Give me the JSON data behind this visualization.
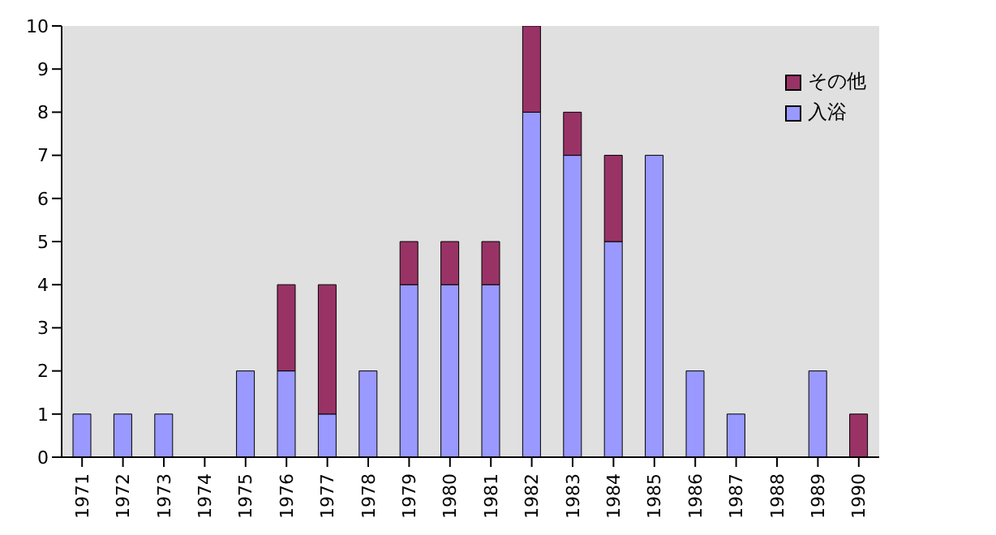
{
  "chart_data": {
    "type": "bar",
    "stacked": true,
    "categories": [
      "1971",
      "1972",
      "1973",
      "1974",
      "1975",
      "1976",
      "1977",
      "1978",
      "1979",
      "1980",
      "1981",
      "1982",
      "1983",
      "1984",
      "1985",
      "1986",
      "1987",
      "1988",
      "1989",
      "1990"
    ],
    "series": [
      {
        "name": "入浴",
        "color": "#9999ff",
        "values": [
          1,
          1,
          1,
          0,
          2,
          2,
          1,
          2,
          4,
          4,
          4,
          8,
          7,
          5,
          7,
          2,
          1,
          0,
          2,
          0
        ]
      },
      {
        "name": "その他",
        "color": "#993366",
        "values": [
          0,
          0,
          0,
          0,
          0,
          2,
          3,
          0,
          1,
          1,
          1,
          2,
          1,
          2,
          0,
          0,
          0,
          0,
          0,
          1
        ]
      }
    ],
    "ylim": [
      0,
      10
    ],
    "yticks": [
      0,
      1,
      2,
      3,
      4,
      5,
      6,
      7,
      8,
      9,
      10
    ],
    "grid": false,
    "legend": "top right"
  }
}
